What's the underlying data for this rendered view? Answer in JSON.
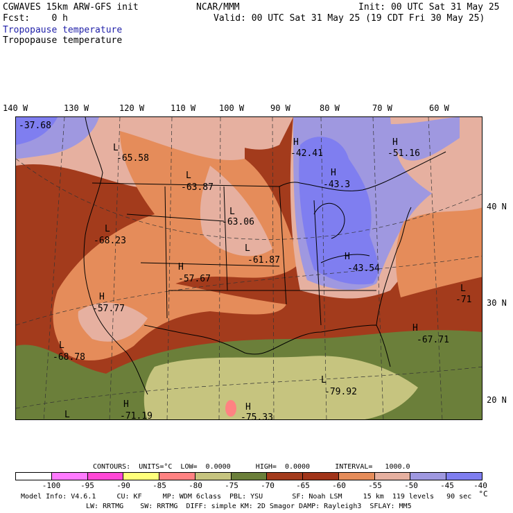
{
  "header": {
    "line1_left": "CGWAVES 15km ARW-GFS init",
    "line1_mid": "NCAR/MMM",
    "line1_right": "Init: 00 UTC Sat 31 May 25",
    "line2_left": "Fcst:    0 h",
    "line2_right": "Valid: 00 UTC Sat 31 May 25 (19 CDT Fri 30 May 25)",
    "field_title_blue": "Tropopause temperature",
    "field_title_black": "Tropopause temperature"
  },
  "axes": {
    "longitude_labels": [
      "140 W",
      "130 W",
      "120 W",
      "110 W",
      "100 W",
      "90 W",
      "80 W",
      "70 W",
      "60 W"
    ],
    "latitude_labels": [
      "40 N",
      "30 N",
      "20 N"
    ]
  },
  "map_labels": [
    {
      "type": "L",
      "value": "-65.58"
    },
    {
      "type": "L",
      "value": "-63.87"
    },
    {
      "type": "L",
      "value": "-63.06"
    },
    {
      "type": "L",
      "value": "-68.23"
    },
    {
      "type": "L",
      "value": "-61.87"
    },
    {
      "type": "H",
      "value": "-57.67"
    },
    {
      "type": "H",
      "value": "-42.41"
    },
    {
      "type": "H",
      "value": "-51.16"
    },
    {
      "type": "H",
      "value": "-43.3"
    },
    {
      "type": "H",
      "value": "-43.54"
    },
    {
      "type": "L",
      "value": "-71"
    },
    {
      "type": "H",
      "value": "-67.71"
    },
    {
      "type": "L",
      "value": "-68.78"
    },
    {
      "type": "H",
      "value": "-57.77"
    },
    {
      "type": "L",
      "value": "-79.92"
    },
    {
      "type": "H",
      "value": "-71.19"
    },
    {
      "type": "H",
      "value": "-75.33"
    },
    {
      "type": "L",
      "value": ""
    },
    {
      "type": "",
      "value": "-37.68"
    }
  ],
  "contour_info": "CONTOURS:  UNITS=°C  LOW=  0.0000      HIGH=  0.0000      INTERVAL=   1000.0",
  "colorbar": {
    "colors": [
      "#ffffff",
      "#ff7bff",
      "#ff47d6",
      "#ffff7b",
      "#ff8282",
      "#c6c47f",
      "#6b7f3a",
      "#a33b1c",
      "#a13419",
      "#e58c5a",
      "#e6b0a0",
      "#9f98e0",
      "#7f7ef0",
      "#7373f5"
    ],
    "tick_labels": [
      "-100",
      "-95",
      "-90",
      "-85",
      "-80",
      "-75",
      "-70",
      "-65",
      "-60",
      "-55",
      "-50",
      "-45",
      "-40",
      "°C"
    ]
  },
  "footer": {
    "line1": "Model Info: V4.6.1     CU: KF     MP: WDM 6class  PBL: YSU       SF: Noah LSM     15 km  119 levels   90 sec",
    "line2": "LW: RRTMG    SW: RRTMG  DIFF: simple KM: 2D Smagor DAMP: Rayleigh3  SFLAY: MM5"
  }
}
